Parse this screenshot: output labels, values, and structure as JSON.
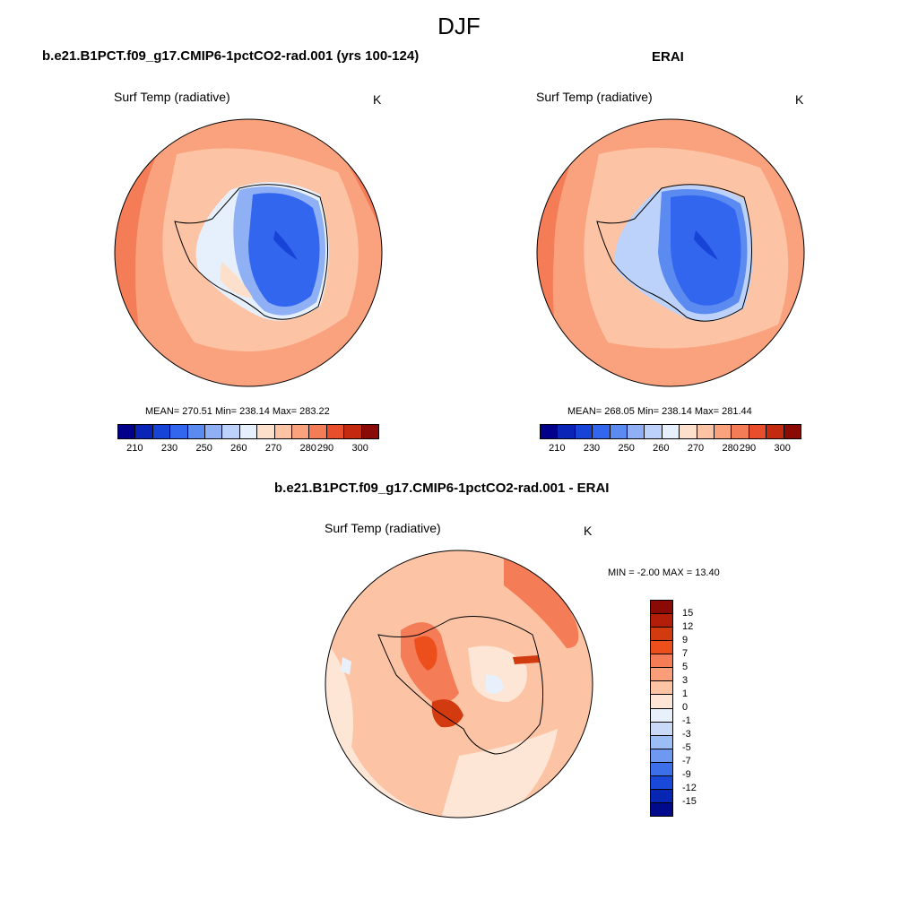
{
  "figure": {
    "title": "DJF"
  },
  "panels": [
    {
      "id": "model",
      "title": "b.e21.B1PCT.f09_g17.CMIP6-1pctCO2-rad.001 (yrs 100-124)",
      "variable": "Surf Temp (radiative)",
      "units": "K",
      "stats": {
        "mean": "270.51",
        "min": "238.14",
        "max": "283.22",
        "text": "MEAN= 270.51  Min= 238.14  Max= 283.22"
      }
    },
    {
      "id": "obs",
      "title": "ERAI",
      "variable": "Surf Temp (radiative)",
      "units": "K",
      "stats": {
        "mean": "268.05",
        "min": "238.14",
        "max": "281.44",
        "text": "MEAN= 268.05  Min= 238.14  Max= 281.44"
      }
    },
    {
      "id": "diff",
      "title": "b.e21.B1PCT.f09_g17.CMIP6-1pctCO2-rad.001 - ERAI",
      "variable": "Surf Temp (radiative)",
      "units": "K",
      "stats": {
        "min": "-2.00",
        "max": "13.40",
        "text": "MIN =  -2.00 MAX =  13.40"
      }
    }
  ],
  "colorbar_abs": {
    "ticks": [
      "210",
      "230",
      "250",
      "260",
      "270",
      "280",
      "290",
      "300"
    ],
    "colors": [
      "#00008a",
      "#0a24b8",
      "#1744d6",
      "#3366ee",
      "#5b8af0",
      "#8fb0f5",
      "#bcd2fa",
      "#e6f0fc",
      "#fde0cc",
      "#fcc4a4",
      "#faa27e",
      "#f47c56",
      "#e84e2c",
      "#c42a10",
      "#8a0a06"
    ]
  },
  "colorbar_diff": {
    "ticks": [
      "15",
      "12",
      "9",
      "7",
      "5",
      "3",
      "1",
      "0",
      "-1",
      "-3",
      "-5",
      "-7",
      "-9",
      "-12",
      "-15"
    ],
    "colors": [
      "#8a0a06",
      "#b21e0a",
      "#d23a10",
      "#ec4e1c",
      "#f47c56",
      "#fa9e7a",
      "#fcc4a4",
      "#fde6d6",
      "#e8f0fb",
      "#c8daf8",
      "#9dbdf5",
      "#6f98f0",
      "#3d6fe8",
      "#1a48d8",
      "#0826b4",
      "#000a8a"
    ]
  },
  "chart_data": {
    "type": "heatmap",
    "title": "DJF",
    "projection": "south polar stereographic",
    "panels": [
      {
        "name": "b.e21.B1PCT.f09_g17.CMIP6-1pctCO2-rad.001 (yrs 100-124)",
        "variable": "Surf Temp (radiative)",
        "units": "K",
        "mean": 270.51,
        "min": 238.14,
        "max": 283.22
      },
      {
        "name": "ERAI",
        "variable": "Surf Temp (radiative)",
        "units": "K",
        "mean": 268.05,
        "min": 238.14,
        "max": 281.44
      },
      {
        "name": "b.e21.B1PCT.f09_g17.CMIP6-1pctCO2-rad.001 - ERAI",
        "variable": "Surf Temp (radiative)",
        "units": "K",
        "min": -2.0,
        "max": 13.4
      }
    ]
  }
}
